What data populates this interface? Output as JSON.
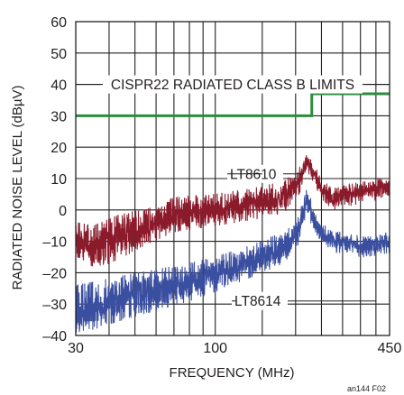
{
  "chart_data": {
    "type": "line",
    "xlabel": "FREQUENCY (MHz)",
    "ylabel": "RADIATED NOISE LEVEL (dBµV)",
    "xscale": "log",
    "xlim": [
      30,
      450
    ],
    "ylim": [
      -40,
      60
    ],
    "xticks": [
      {
        "value": 30,
        "label": "30"
      },
      {
        "value": 100,
        "label": "100"
      },
      {
        "value": 450,
        "label": "450"
      }
    ],
    "yticks": [
      -40,
      -30,
      -20,
      -10,
      0,
      10,
      20,
      30,
      40,
      50,
      60
    ],
    "ytick_labels": [
      "–40",
      "–30",
      "–20",
      "–10",
      "0",
      "10",
      "20",
      "30",
      "40",
      "50",
      "60"
    ],
    "grid": true,
    "limit_line": {
      "label": "CISPR22 RADIATED CLASS B LIMITS",
      "color": "#2e8b3e",
      "points": [
        [
          30,
          30
        ],
        [
          230,
          30
        ],
        [
          230,
          37
        ],
        [
          450,
          37
        ]
      ]
    },
    "series": [
      {
        "name": "LT8610",
        "color": "#8b1a2b",
        "envelope": [
          [
            30,
            -15,
            -5
          ],
          [
            35,
            -17,
            -6
          ],
          [
            40,
            -16,
            -4
          ],
          [
            45,
            -14,
            -2
          ],
          [
            55,
            -10,
            -1
          ],
          [
            70,
            -6,
            3
          ],
          [
            100,
            -4,
            4
          ],
          [
            140,
            -2,
            6
          ],
          [
            180,
            0,
            8
          ],
          [
            205,
            5,
            12
          ],
          [
            215,
            10,
            16
          ],
          [
            220,
            13,
            18
          ],
          [
            232,
            10,
            15
          ],
          [
            250,
            4,
            9
          ],
          [
            275,
            1,
            6
          ],
          [
            300,
            2,
            7
          ],
          [
            350,
            3,
            8
          ],
          [
            400,
            4,
            9
          ],
          [
            450,
            5,
            10
          ]
        ]
      },
      {
        "name": "LT8614",
        "color": "#3b4fa0",
        "envelope": [
          [
            30,
            -38,
            -25
          ],
          [
            35,
            -37,
            -24
          ],
          [
            45,
            -34,
            -22
          ],
          [
            60,
            -31,
            -20
          ],
          [
            80,
            -28,
            -18
          ],
          [
            100,
            -25,
            -16
          ],
          [
            140,
            -20,
            -12
          ],
          [
            180,
            -16,
            -8
          ],
          [
            205,
            -10,
            -3
          ],
          [
            215,
            -4,
            3
          ],
          [
            220,
            0,
            7
          ],
          [
            232,
            -5,
            1
          ],
          [
            250,
            -10,
            -5
          ],
          [
            290,
            -13,
            -8
          ],
          [
            350,
            -14,
            -9
          ],
          [
            400,
            -14,
            -9
          ],
          [
            450,
            -13,
            -8
          ]
        ]
      }
    ],
    "annotations": [
      {
        "text": "LT8610",
        "target": "LT8610"
      },
      {
        "text": "LT8614",
        "target": "LT8614"
      }
    ]
  },
  "figure_id": "an144 F02"
}
